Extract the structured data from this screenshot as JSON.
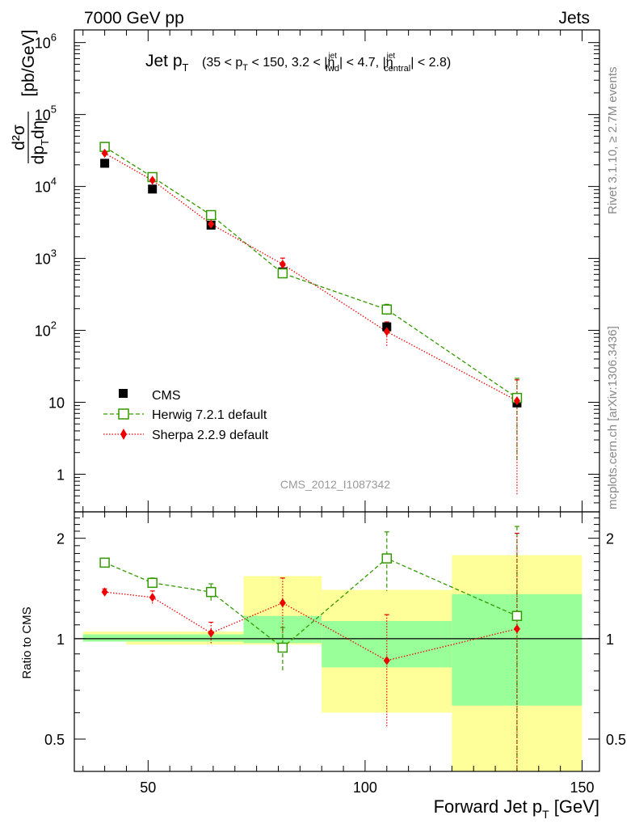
{
  "header": {
    "left": "7000 GeV pp",
    "right": "Jets"
  },
  "plot_title": {
    "main": "Jet p",
    "main_sub": "T",
    "range_text": "(35 < p",
    "range_sub": "T",
    "range_text2": " < 150, 3.2 < |η",
    "fwd_sup": "jet",
    "fwd_sub": "fwd",
    "range_text3": "| < 4.7, |η",
    "central_sup": "jet",
    "central_sub": "central",
    "range_text4": "| < 2.8)"
  },
  "side_labels": {
    "rivet": "Rivet 3.1.10, ≥ 2.7M events",
    "mcplots": "mcplots.cern.ch [arXiv:1306.3436]"
  },
  "watermark": "CMS_2012_I1087342",
  "y_axis_main": {
    "label_frac_top": "d²σ",
    "label_frac_bottom": "dp",
    "label_frac_bottom_sub": "T",
    "label_frac_bottom2": "dη",
    "label_unit": "[pb/GeV]",
    "ticks": [
      "1",
      "10",
      "10",
      "10",
      "10",
      "10",
      "10"
    ],
    "tick_exponents": [
      "",
      "",
      "2",
      "3",
      "4",
      "5",
      "6"
    ]
  },
  "y_axis_ratio": {
    "label": "Ratio to CMS",
    "ticks": [
      "0.5",
      "1",
      "2"
    ]
  },
  "x_axis": {
    "label": "Forward Jet p",
    "label_sub": "T",
    "label_unit": " [GeV]",
    "ticks": [
      "50",
      "100",
      "150"
    ]
  },
  "legend": [
    {
      "label": "CMS"
    },
    {
      "label": "Herwig 7.2.1 default"
    },
    {
      "label": "Sherpa 2.2.9 default"
    }
  ],
  "colors": {
    "cms": "#000000",
    "herwig": "#339900",
    "sherpa": "#ee0000",
    "band_inner": "#99ff99",
    "band_outer": "#ffff99"
  },
  "chart_data": {
    "type": "scatter",
    "x_label": "Forward Jet pT [GeV]",
    "y_label": "d²σ/dpTdη [pb/GeV]",
    "y_scale": "log",
    "xlim": [
      33,
      154
    ],
    "ylim_main": [
      0.3,
      1500000
    ],
    "ylim_ratio": [
      0.4,
      2.4
    ],
    "bins": [
      [
        35,
        45
      ],
      [
        45,
        57
      ],
      [
        57,
        72
      ],
      [
        72,
        90
      ],
      [
        90,
        120
      ],
      [
        120,
        150
      ]
    ],
    "x": [
      40,
      51,
      64.5,
      81,
      105,
      135
    ],
    "series": [
      {
        "name": "CMS",
        "values": [
          21000,
          9200,
          2900,
          650,
          112,
          9.8
        ]
      },
      {
        "name": "Herwig 7.2.1 default",
        "values": [
          35500,
          13500,
          4000,
          620,
          195,
          11.5
        ],
        "errors": [
          1500,
          600,
          250,
          60,
          35,
          10
        ]
      },
      {
        "name": "Sherpa 2.2.9 default",
        "values": [
          29000,
          12200,
          3000,
          830,
          96,
          10.5
        ],
        "errors": [
          1000,
          700,
          250,
          180,
          35,
          10
        ]
      }
    ],
    "ratio": {
      "herwig": [
        1.69,
        1.47,
        1.38,
        0.94,
        1.74,
        1.17
      ],
      "herwig_err": [
        0.03,
        0.05,
        0.08,
        0.14,
        0.35,
        1.0
      ],
      "sherpa": [
        1.38,
        1.33,
        1.04,
        1.28,
        0.86,
        1.07
      ],
      "sherpa_err": [
        0.03,
        0.06,
        0.08,
        0.24,
        0.32,
        1.0
      ],
      "band_inner": [
        [
          0.98,
          1.03
        ],
        [
          0.98,
          1.03
        ],
        [
          0.98,
          1.03
        ],
        [
          0.97,
          1.17
        ],
        [
          0.82,
          1.13
        ],
        [
          0.63,
          1.36
        ]
      ],
      "band_outer": [
        [
          0.98,
          1.05
        ],
        [
          0.96,
          1.05
        ],
        [
          0.96,
          1.05
        ],
        [
          0.96,
          1.54
        ],
        [
          0.6,
          1.4
        ],
        [
          0.3,
          1.78
        ]
      ]
    }
  }
}
